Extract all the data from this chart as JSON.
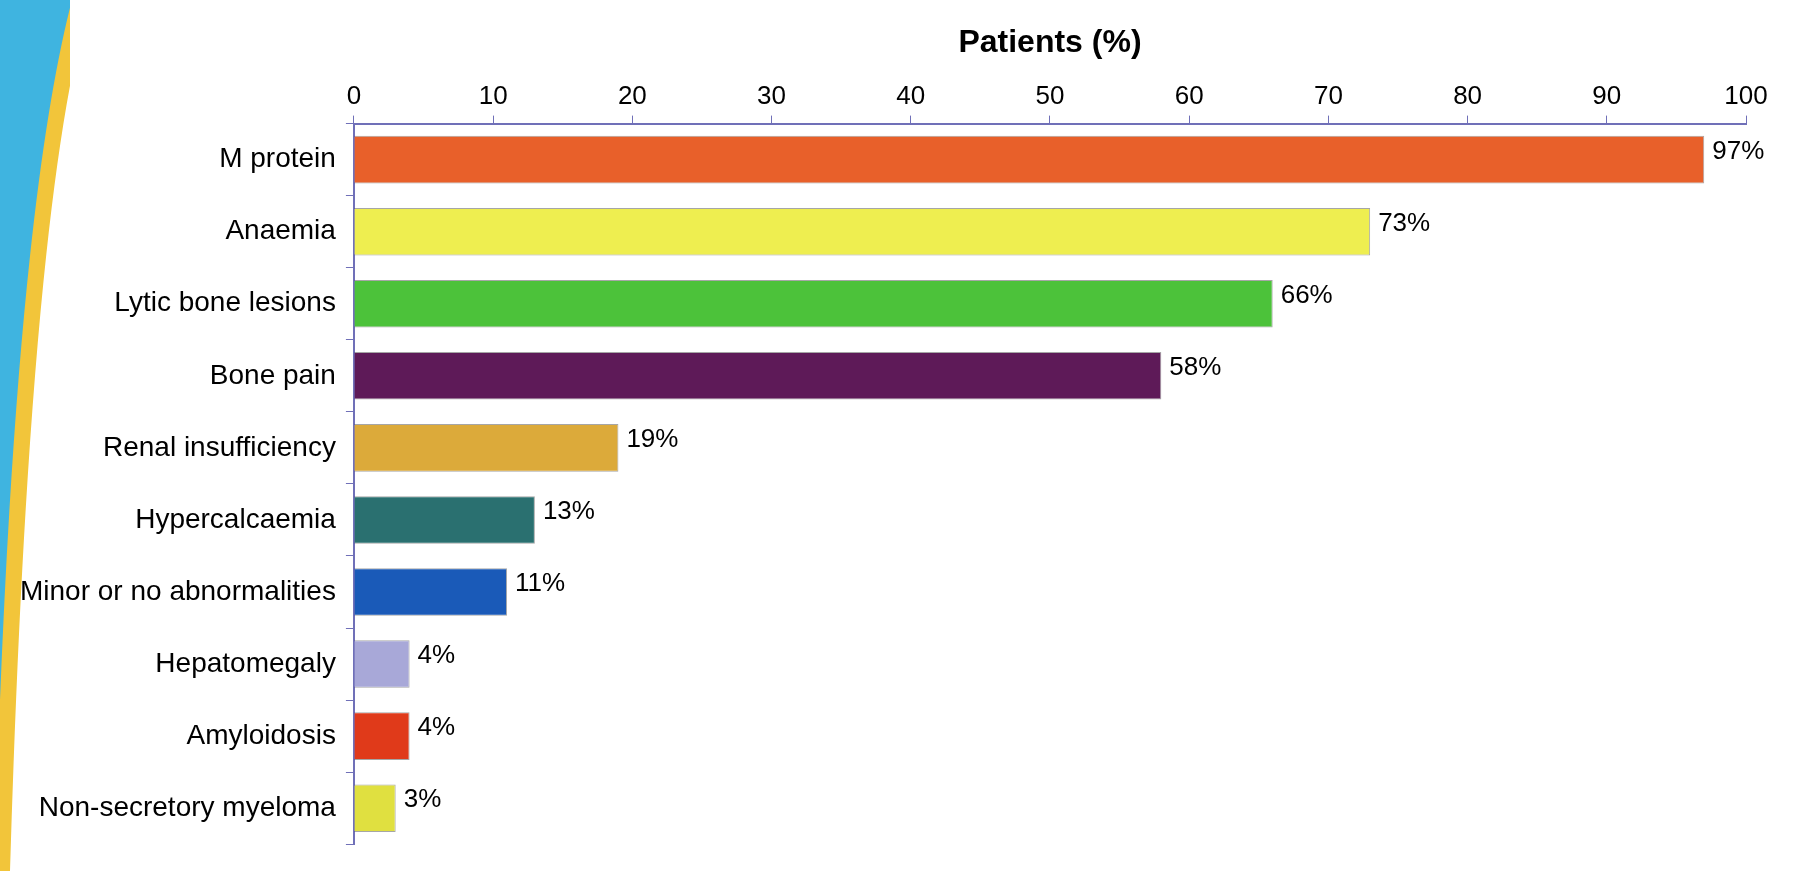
{
  "chart_data": {
    "type": "bar",
    "orientation": "horizontal",
    "xlabel": "Patients (%)",
    "categories": [
      "M protein",
      "Anaemia",
      "Lytic bone lesions",
      "Bone pain",
      "Renal insufficiency",
      "Hypercalcaemia",
      "Minor or no abnormalities",
      "Hepatomegaly",
      "Amyloidosis",
      "Non-secretory myeloma"
    ],
    "values": [
      97,
      73,
      66,
      58,
      19,
      13,
      11,
      4,
      4,
      3
    ],
    "value_labels": [
      "97%",
      "73%",
      "66%",
      "58%",
      "19%",
      "13%",
      "11%",
      "4%",
      "4%",
      "3%"
    ],
    "colors": [
      "#e8602a",
      "#eeee50",
      "#4cc23a",
      "#5e1a58",
      "#dcaa3a",
      "#2a7070",
      "#1a5ab8",
      "#a8a8d8",
      "#e03a1a",
      "#e0e040"
    ],
    "xlim": [
      0,
      100
    ],
    "xticks": [
      0,
      10,
      20,
      30,
      40,
      50,
      60,
      70,
      80,
      90,
      100
    ],
    "grid": false,
    "legend": false
  }
}
